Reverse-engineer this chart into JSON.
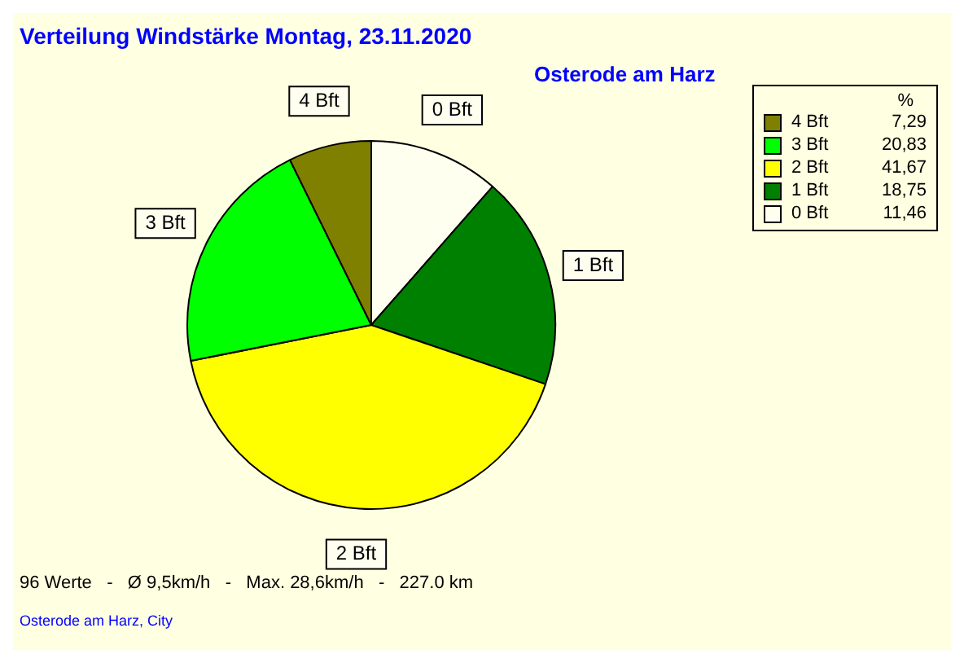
{
  "chart_data": {
    "type": "pie",
    "title": "Verteilung Windstärke  Montag, 23.11.2020",
    "subtitle": "Osterode am Harz",
    "legend_title": "%",
    "categories": [
      "0 Bft",
      "1 Bft",
      "2 Bft",
      "3 Bft",
      "4 Bft"
    ],
    "values": [
      11.46,
      18.75,
      41.67,
      20.83,
      7.29
    ],
    "value_labels": [
      "11,46",
      "18,75",
      "41,67",
      "20,83",
      "7,29"
    ],
    "colors": [
      "#fffff0",
      "#008000",
      "#ffff00",
      "#00ff00",
      "#808000"
    ],
    "legend": "top right",
    "annotations": [
      "96 Werte   -   Ø 9,5km/h   -   Max. 28,6km/h   -   227.0 km",
      "Osterode am Harz, City"
    ]
  }
}
